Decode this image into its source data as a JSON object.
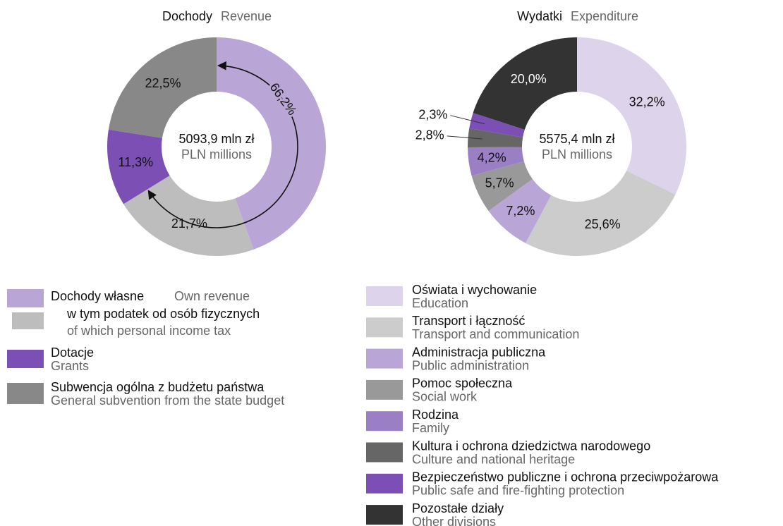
{
  "chart_data": [
    {
      "type": "pie",
      "title": "Dochody",
      "subtitle": "Revenue",
      "center_label": "5093,9 mln zł",
      "center_sublabel": "PLN millions",
      "categories": [
        "Dochody własne",
        "w tym podatek od osób fizycznych",
        "Dotacje",
        "Subwencja ogólna z budżetu państwa"
      ],
      "categories_en": [
        "Own revenue",
        "of which personal income tax",
        "Grants",
        "General subvention from the state budget"
      ],
      "values": [
        44.5,
        21.7,
        11.3,
        22.5
      ],
      "value_labels": [
        null,
        "21,7%",
        "11,3%",
        "22,5%"
      ],
      "colors": [
        "#b9a5d6",
        "#bdbdbd",
        "#7b4fb3",
        "#888888"
      ],
      "annotation": {
        "value": 66.2,
        "label": "66,2%"
      }
    },
    {
      "type": "pie",
      "title": "Wydatki",
      "subtitle": "Expenditure",
      "center_label": "5575,4 mln zł",
      "center_sublabel": "PLN millions",
      "categories": [
        "Oświata i wychowanie",
        "Transport i łączność",
        "Administracja publiczna",
        "Pomoc społeczna",
        "Rodzina",
        "Kultura i ochrona dziedzictwa narodowego",
        "Bezpieczeństwo publiczne i ochrona przeciwpożarowa",
        "Pozostałe działy"
      ],
      "categories_en": [
        "Education",
        "Transport and communication",
        "Public administration",
        "Social work",
        "Family",
        "Culture and national heritage",
        "Public safe and fire-fighting protection",
        "Other divisions"
      ],
      "values": [
        32.2,
        25.6,
        7.2,
        5.7,
        4.2,
        2.8,
        2.3,
        20.0
      ],
      "value_labels": [
        "32,2%",
        "25,6%",
        "7,2%",
        "5,7%",
        "4,2%",
        "2,8%",
        "2,3%",
        "20,0%"
      ],
      "colors": [
        "#ddd3ea",
        "#cccccc",
        "#b9a5d6",
        "#999999",
        "#9b7fc5",
        "#666666",
        "#7b4fb3",
        "#333333"
      ]
    }
  ]
}
